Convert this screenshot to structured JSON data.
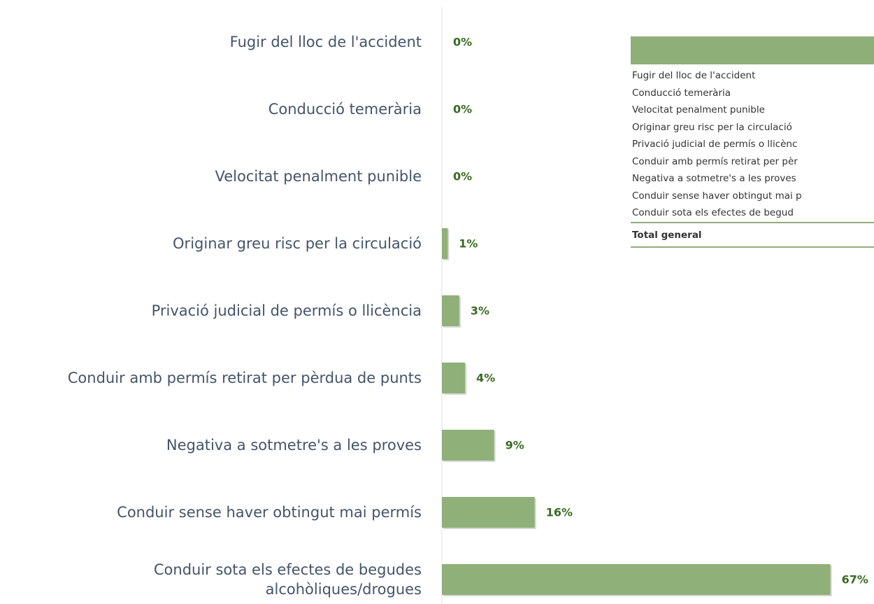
{
  "chart_data": {
    "type": "bar",
    "orientation": "horizontal",
    "categories": [
      "Fugir del lloc de l'accident",
      "Conducció temerària",
      "Velocitat penalment punible",
      "Originar greu risc per la circulació",
      "Privació judicial de permís o llicència",
      "Conduir amb permís retirat per pèrdua de punts",
      "Negativa a sotmetre's a les proves",
      "Conduir sense haver obtingut mai permís",
      "Conduir sota els efectes de begudes alcohòliques/drogues"
    ],
    "values": [
      0,
      0,
      0,
      1,
      3,
      4,
      9,
      16,
      67
    ],
    "value_labels": [
      "0%",
      "0%",
      "0%",
      "1%",
      "3%",
      "4%",
      "9%",
      "16%",
      "67%"
    ],
    "color": "#8fb079",
    "xlim": [
      0,
      75
    ]
  },
  "table": {
    "rows": [
      "Fugir del lloc de l'accident",
      "Conducció temerària",
      "Velocitat penalment punible",
      "Originar greu risc per la circulació",
      "Privació judicial de permís o llicènc",
      "Conduir amb permís retirat per pèr",
      "Negativa a sotmetre's a les proves",
      "Conduir sense haver obtingut mai p",
      "Conduir sota els efectes de begud"
    ],
    "total": "Total general"
  }
}
